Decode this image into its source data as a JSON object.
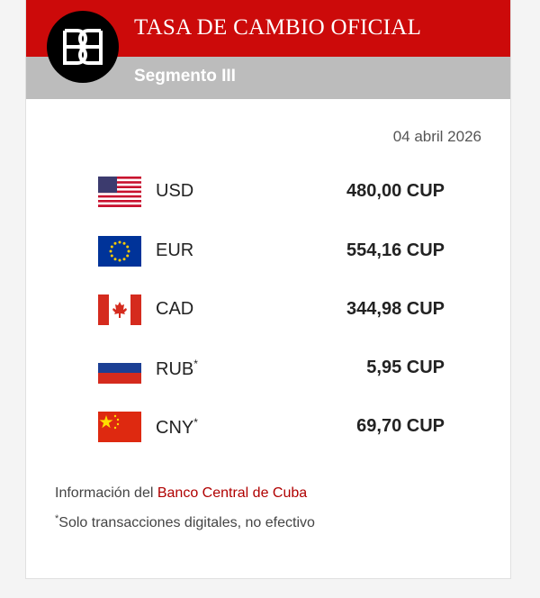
{
  "header": {
    "title": "TASA DE CAMBIO OFICIAL",
    "subtitle": "Segmento III"
  },
  "date": "04 abril 2026",
  "rates": [
    {
      "code": "USD",
      "value": "480,00 CUP"
    },
    {
      "code": "EUR",
      "value": "554,16 CUP"
    },
    {
      "code": "CAD",
      "value": "344,98 CUP"
    },
    {
      "code": "RUB",
      "marker": "*",
      "value": "5,95 CUP"
    },
    {
      "code": "CNY",
      "marker": "*",
      "value": "69,70 CUP"
    }
  ],
  "footer": {
    "source_prefix": "Información del",
    "source_link": "Banco Central de Cuba",
    "note_marker": "*",
    "note": "Solo transacciones digitales, no efectivo"
  }
}
